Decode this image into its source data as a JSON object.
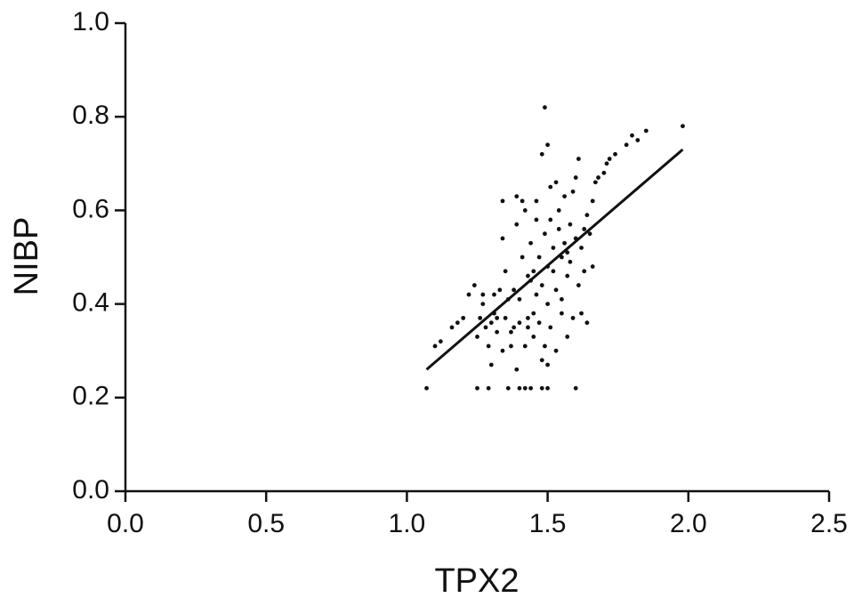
{
  "chart_data": {
    "type": "scatter",
    "x_label": "TPX2",
    "y_label": "NIBP",
    "xlim": [
      0,
      2.5
    ],
    "ylim": [
      0,
      1.0
    ],
    "xticks": [
      {
        "value": 0,
        "label": "0.0"
      },
      0.5,
      {
        "value": 1,
        "label": "1.0"
      },
      1.5,
      {
        "value": 2,
        "label": "2.0"
      },
      2.5
    ],
    "yticks": [
      {
        "value": 0,
        "label": "0.0"
      },
      0.2,
      0.4,
      0.6,
      0.8,
      {
        "value": 1,
        "label": "1.0"
      }
    ],
    "color": "#111111",
    "x": [
      1.07,
      1.1,
      1.12,
      1.16,
      1.18,
      1.2,
      1.22,
      1.24,
      1.25,
      1.25,
      1.26,
      1.27,
      1.28,
      1.29,
      1.29,
      1.3,
      1.3,
      1.31,
      1.32,
      1.32,
      1.33,
      1.34,
      1.34,
      1.35,
      1.35,
      1.36,
      1.37,
      1.37,
      1.38,
      1.38,
      1.39,
      1.39,
      1.4,
      1.4,
      1.4,
      1.41,
      1.41,
      1.42,
      1.42,
      1.42,
      1.43,
      1.43,
      1.44,
      1.44,
      1.44,
      1.45,
      1.45,
      1.46,
      1.46,
      1.47,
      1.47,
      1.48,
      1.48,
      1.48,
      1.48,
      1.49,
      1.49,
      1.49,
      1.5,
      1.5,
      1.5,
      1.5,
      1.5,
      1.51,
      1.51,
      1.51,
      1.52,
      1.52,
      1.53,
      1.53,
      1.54,
      1.54,
      1.55,
      1.55,
      1.55,
      1.56,
      1.56,
      1.57,
      1.57,
      1.58,
      1.58,
      1.59,
      1.59,
      1.6,
      1.6,
      1.6,
      1.61,
      1.61,
      1.62,
      1.62,
      1.63,
      1.63,
      1.64,
      1.64,
      1.65,
      1.66,
      1.66,
      1.67,
      1.68,
      1.7,
      1.71,
      1.72,
      1.74,
      1.78,
      1.8,
      1.82,
      1.85,
      1.98,
      1.27,
      1.34,
      1.46,
      1.53,
      1.39,
      1.45,
      1.57,
      1.43,
      1.36,
      1.31
    ],
    "values": [
      0.22,
      0.31,
      0.32,
      0.35,
      0.36,
      0.37,
      0.42,
      0.44,
      0.22,
      0.33,
      0.37,
      0.42,
      0.35,
      0.22,
      0.31,
      0.27,
      0.36,
      0.42,
      0.37,
      0.34,
      0.43,
      0.62,
      0.54,
      0.47,
      0.37,
      0.22,
      0.31,
      0.34,
      0.35,
      0.43,
      0.57,
      0.63,
      0.22,
      0.36,
      0.41,
      0.5,
      0.62,
      0.22,
      0.31,
      0.6,
      0.37,
      0.46,
      0.22,
      0.53,
      0.45,
      0.38,
      0.33,
      0.58,
      0.42,
      0.36,
      0.5,
      0.22,
      0.28,
      0.72,
      0.44,
      0.82,
      0.55,
      0.31,
      0.74,
      0.48,
      0.4,
      0.22,
      0.27,
      0.65,
      0.58,
      0.35,
      0.47,
      0.52,
      0.3,
      0.43,
      0.56,
      0.6,
      0.5,
      0.41,
      0.38,
      0.63,
      0.53,
      0.33,
      0.46,
      0.57,
      0.49,
      0.64,
      0.37,
      0.22,
      0.67,
      0.54,
      0.71,
      0.44,
      0.52,
      0.38,
      0.56,
      0.47,
      0.59,
      0.36,
      0.55,
      0.48,
      0.62,
      0.66,
      0.67,
      0.68,
      0.7,
      0.71,
      0.72,
      0.74,
      0.76,
      0.75,
      0.77,
      0.78,
      0.4,
      0.3,
      0.62,
      0.66,
      0.26,
      0.47,
      0.51,
      0.35,
      0.41,
      0.38
    ],
    "trend_line": {
      "x": [
        1.07,
        1.98
      ],
      "y": [
        0.26,
        0.73
      ]
    }
  }
}
